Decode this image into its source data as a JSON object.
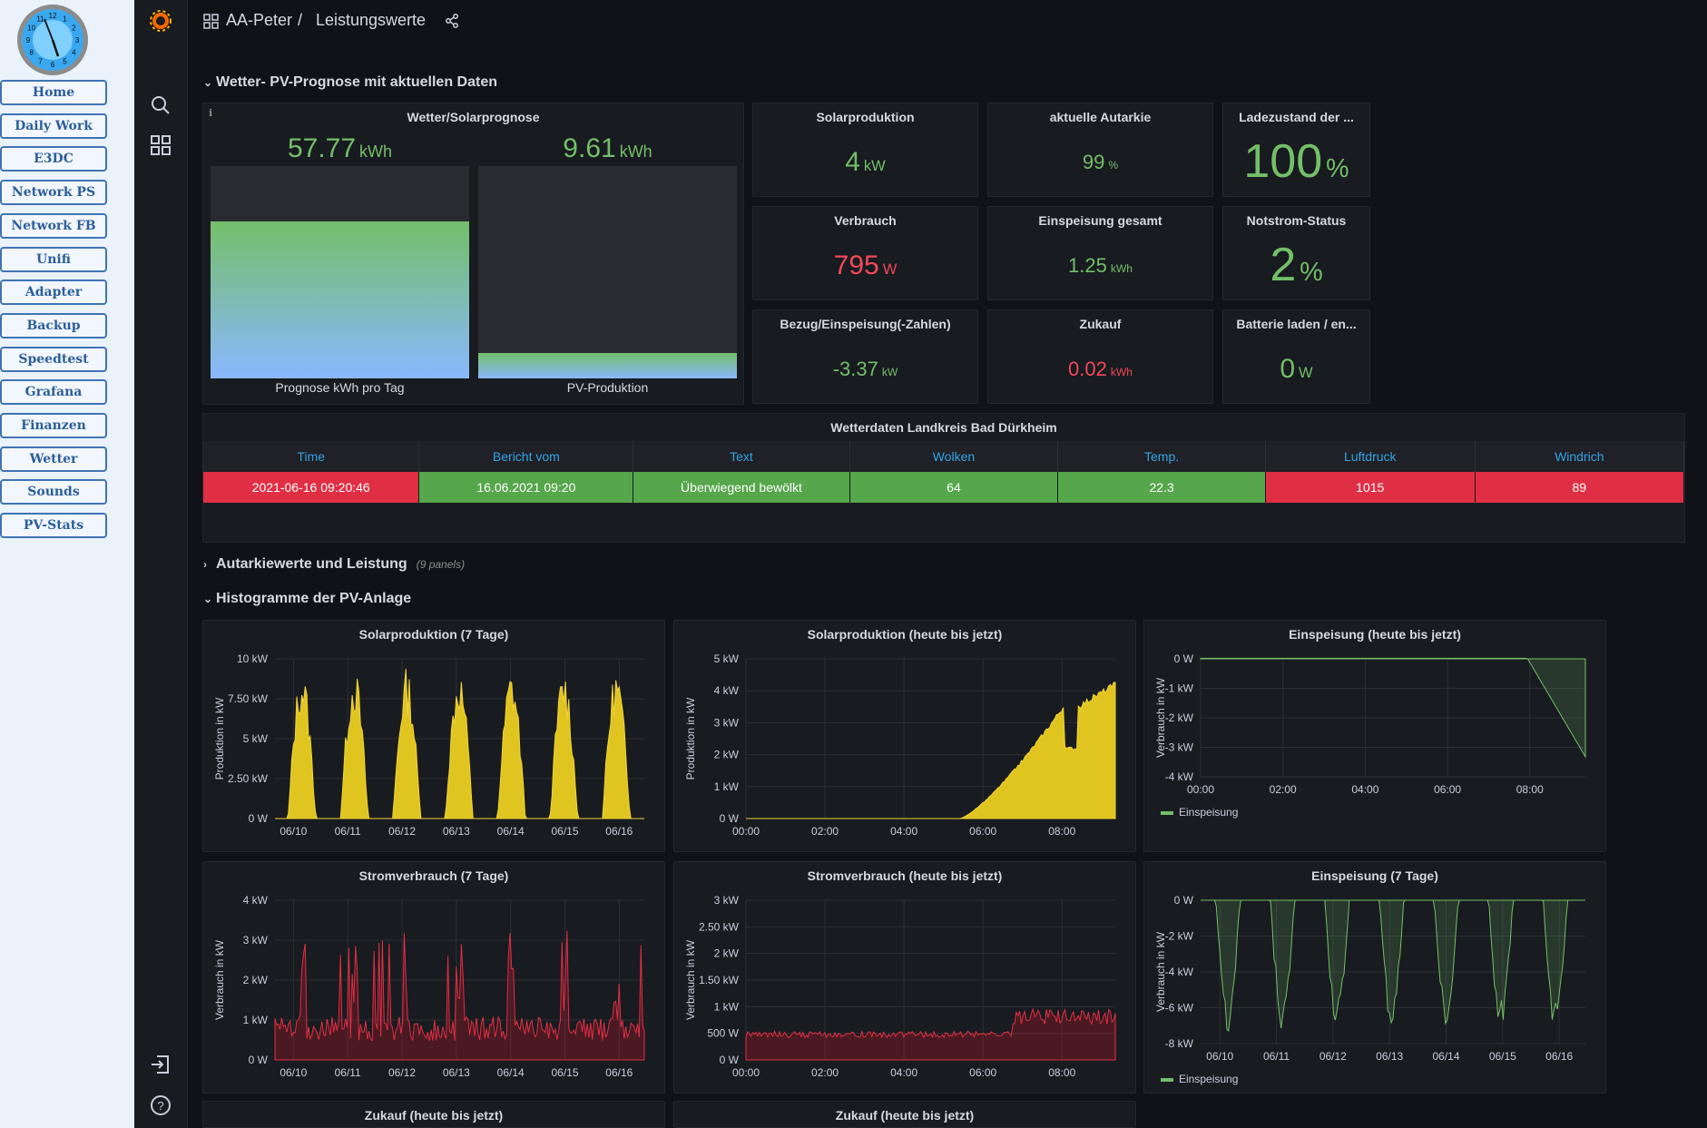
{
  "left_nav": {
    "items": [
      "Home",
      "Daily Work",
      "E3DC",
      "Network PS",
      "Network FB",
      "Unifi",
      "Adapter",
      "Backup",
      "Speedtest",
      "Grafana",
      "Finanzen",
      "Wetter",
      "Sounds",
      "PV-Stats"
    ]
  },
  "clock": {
    "numbers": [
      "12",
      "1",
      "2",
      "3",
      "4",
      "5",
      "6",
      "7",
      "8",
      "9",
      "10",
      "11"
    ]
  },
  "breadcrumb": {
    "folder": "AA-Peter",
    "sep": "/",
    "dashboard": "Leistungswerte"
  },
  "rows": {
    "weather": "Wetter- PV-Prognose mit aktuellen Daten",
    "autarky": "Autarkiewerte und Leistung",
    "autarky_sub": "(9 panels)",
    "histo": "Histogramme der PV-Anlage"
  },
  "forecast": {
    "title": "Wetter/Solarprognose",
    "gauges": [
      {
        "value": "57.77",
        "unit": "kWh",
        "label": "Prognose kWh pro Tag",
        "fill": 0.74
      },
      {
        "value": "9.61",
        "unit": "kWh",
        "label": "PV-Produktion",
        "fill": 0.12
      }
    ]
  },
  "stats": [
    {
      "title": "Solarproduktion",
      "value": "4",
      "unit": "kW",
      "color": "green",
      "size": "m"
    },
    {
      "title": "aktuelle Autarkie",
      "value": "99",
      "unit": "%",
      "color": "green",
      "size": "s"
    },
    {
      "title": "Ladezustand der ...",
      "value": "100",
      "unit": "%",
      "color": "green",
      "size": "l"
    },
    {
      "title": "Verbrauch",
      "value": "795",
      "unit": "W",
      "color": "red",
      "size": "m"
    },
    {
      "title": "Einspeisung gesamt",
      "value": "1.25",
      "unit": "kWh",
      "color": "green",
      "size": "s"
    },
    {
      "title": "Notstrom-Status",
      "value": "2",
      "unit": "%",
      "color": "green",
      "size": "l"
    },
    {
      "title": "Bezug/Einspeisung(-Zahlen)",
      "value": "-3.37",
      "unit": "kW",
      "color": "green",
      "size": "s"
    },
    {
      "title": "Zukauf",
      "value": "0.02",
      "unit": "kWh",
      "color": "red",
      "size": "s"
    },
    {
      "title": "Batterie laden / en...",
      "value": "0",
      "unit": "W",
      "color": "green",
      "size": "m"
    }
  ],
  "weather_table": {
    "title": "Wetterdaten Landkreis Bad Dürkheim",
    "headers": [
      "Time",
      "Bericht vom",
      "Text",
      "Wolken",
      "Temp.",
      "Luftdruck",
      "Windrich"
    ],
    "cells": [
      "2021-06-16 09:20:46",
      "16.06.2021 09:20",
      "Überwiegend bewölkt",
      "64",
      "22.3",
      "1015",
      "89"
    ],
    "cell_colors": [
      "#e02f44",
      "#56a64b",
      "#56a64b",
      "#56a64b",
      "#56a64b",
      "#e02f44",
      "#e02f44"
    ]
  },
  "charts": [
    {
      "title": "Solarproduktion (7 Tage)",
      "ylabel": "Produktion in kW",
      "yticks": [
        "10 kW",
        "7.50 kW",
        "5 kW",
        "2.50 kW",
        "0 W"
      ],
      "xticks": [
        "06/10",
        "06/11",
        "06/12",
        "06/13",
        "06/14",
        "06/15",
        "06/16"
      ],
      "legend": ""
    },
    {
      "title": "Solarproduktion (heute bis jetzt)",
      "ylabel": "Produktion in kW",
      "yticks": [
        "5 kW",
        "4 kW",
        "3 kW",
        "2 kW",
        "1 kW",
        "0 W"
      ],
      "xticks": [
        "00:00",
        "02:00",
        "04:00",
        "06:00",
        "08:00"
      ],
      "legend": ""
    },
    {
      "title": "Einspeisung (heute bis jetzt)",
      "ylabel": "Verbrauch in kW",
      "yticks": [
        "0 W",
        "-1 kW",
        "-2 kW",
        "-3 kW",
        "-4 kW"
      ],
      "xticks": [
        "00:00",
        "02:00",
        "04:00",
        "06:00",
        "08:00"
      ],
      "legend": "Einspeisung"
    },
    {
      "title": "Stromverbrauch (7 Tage)",
      "ylabel": "Verbrauch in kW",
      "yticks": [
        "4 kW",
        "3 kW",
        "2 kW",
        "1 kW",
        "0 W"
      ],
      "xticks": [
        "06/10",
        "06/11",
        "06/12",
        "06/13",
        "06/14",
        "06/15",
        "06/16"
      ],
      "legend": ""
    },
    {
      "title": "Stromverbrauch (heute bis jetzt)",
      "ylabel": "Verbrauch in kW",
      "yticks": [
        "3 kW",
        "2.50 kW",
        "2 kW",
        "1.50 kW",
        "1 kW",
        "500 W",
        "0 W"
      ],
      "xticks": [
        "00:00",
        "02:00",
        "04:00",
        "06:00",
        "08:00"
      ],
      "legend": ""
    },
    {
      "title": "Einspeisung (7 Tage)",
      "ylabel": "Verbrauch in kW",
      "yticks": [
        "0 W",
        "-2 kW",
        "-4 kW",
        "-6 kW",
        "-8 kW"
      ],
      "xticks": [
        "06/10",
        "06/11",
        "06/12",
        "06/13",
        "06/14",
        "06/15",
        "06/16"
      ],
      "legend": "Einspeisung"
    },
    {
      "title": "Zukauf (heute bis jetzt)"
    },
    {
      "title": "Zukauf (heute bis jetzt)"
    }
  ],
  "colors": {
    "accent_green": "#73bf69",
    "accent_red": "#f2495c",
    "solar_yellow": "#e0c520",
    "consumption_red": "#c4162a",
    "header_blue": "#33a2e5"
  },
  "icons": [
    "grafana-logo-icon",
    "search-icon",
    "dashboards-icon",
    "sign-out-icon",
    "help-icon",
    "share-icon",
    "dashboard-grid-icon",
    "info-icon"
  ]
}
